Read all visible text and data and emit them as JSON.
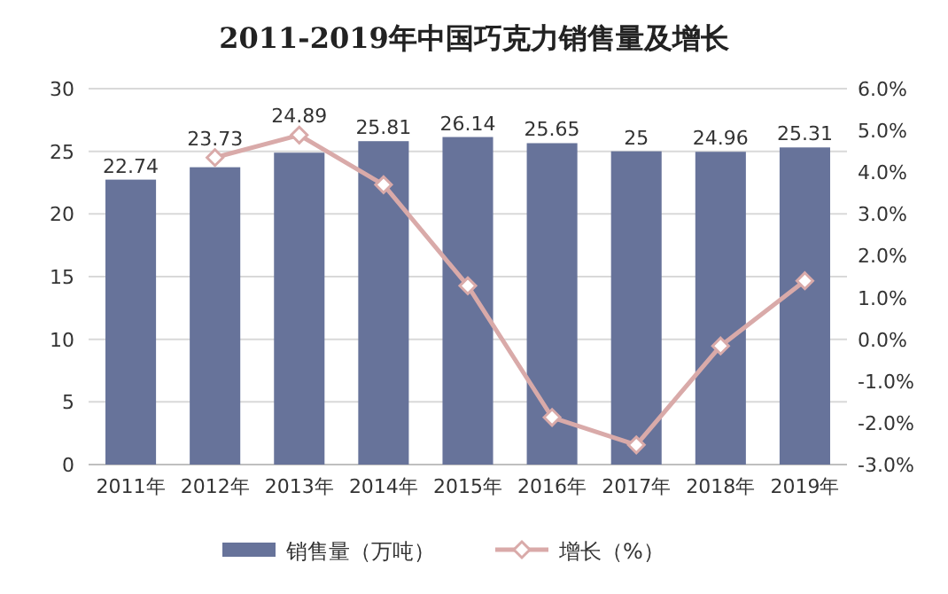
{
  "chart_data": {
    "type": "bar",
    "title": "2011-2019年中国巧克力销售量及增长",
    "categories": [
      "2011年",
      "2012年",
      "2013年",
      "2014年",
      "2015年",
      "2016年",
      "2017年",
      "2018年",
      "2019年"
    ],
    "series": [
      {
        "name": "销售量（万吨）",
        "color": "#67739a",
        "values": [
          22.74,
          23.73,
          24.89,
          25.81,
          26.14,
          25.65,
          25,
          24.96,
          25.31
        ],
        "value_labels": [
          "22.74",
          "23.73",
          "24.89",
          "25.81",
          "26.14",
          "25.65",
          "25",
          "24.96",
          "25.31"
        ]
      },
      {
        "name": "增长（%）",
        "type": "line",
        "axis": "y2",
        "color": "#d9aaa9",
        "marker": "diamond",
        "values": [
          null,
          4.35,
          4.89,
          3.7,
          1.28,
          -1.87,
          -2.53,
          -0.16,
          1.4
        ]
      }
    ],
    "ylim": [
      0,
      30
    ],
    "yticks": [
      0,
      5,
      10,
      15,
      20,
      25,
      30
    ],
    "y2lim": [
      -3,
      6
    ],
    "y2ticks": [
      {
        "value": -3,
        "label": "-3.0%"
      },
      {
        "value": -2,
        "label": "-2.0%"
      },
      {
        "value": -1,
        "label": "-1.0%"
      },
      {
        "value": 0,
        "label": "0.0%"
      },
      {
        "value": 1,
        "label": "1.0%"
      },
      {
        "value": 2,
        "label": "2.0%"
      },
      {
        "value": 3,
        "label": "3.0%"
      },
      {
        "value": 4,
        "label": "4.0%"
      },
      {
        "value": 5,
        "label": "5.0%"
      },
      {
        "value": 6,
        "label": "6.0%"
      }
    ],
    "grid": "y",
    "legend": "bottom"
  }
}
